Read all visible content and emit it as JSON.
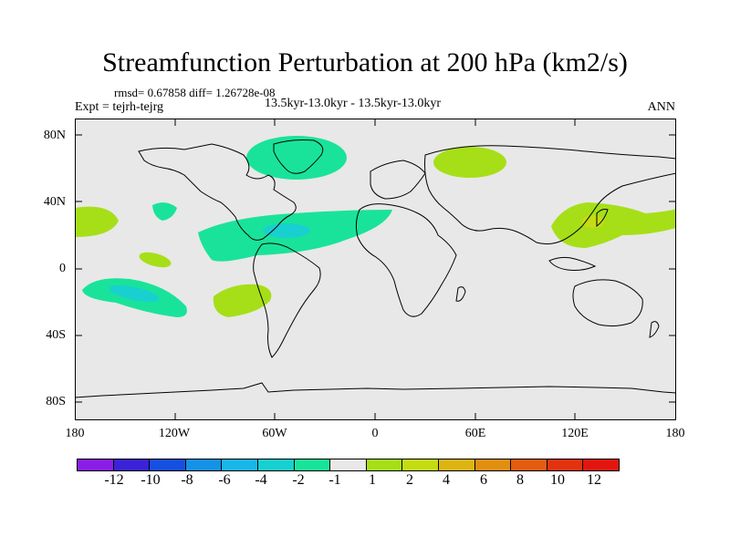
{
  "figure": {
    "title": "Streamfunction Perturbation at 200 hPa (km2/s)",
    "stats": "rmsd= 0.67858  diff= 1.26728e-08",
    "experiment": "Expt = tejrh-tejrg",
    "period": "13.5kyr-13.0kyr - 13.5kyr-13.0kyr",
    "season": "ANN"
  },
  "axes": {
    "y_ticks": [
      "80N",
      "40N",
      "0",
      "40S",
      "80S"
    ],
    "x_ticks": [
      "180",
      "120W",
      "60W",
      "0",
      "60E",
      "120E",
      "180"
    ]
  },
  "colorbar": {
    "colors": [
      "#8a1ee6",
      "#3c22d6",
      "#1550e0",
      "#1591e6",
      "#18b7e8",
      "#18d0cf",
      "#19e39a",
      "#e8e8e8",
      "#a6df18",
      "#c5dc14",
      "#dcb414",
      "#e08f12",
      "#e25d10",
      "#e2330f",
      "#e2160e"
    ],
    "labels": [
      "-12",
      "-10",
      "-8",
      "-6",
      "-4",
      "-2",
      "-1",
      "1",
      "2",
      "4",
      "6",
      "8",
      "10",
      "12"
    ]
  },
  "anomalies": [
    {
      "name": "greenland-negative",
      "level": "-1"
    },
    {
      "name": "siberia-positive",
      "level": "2"
    },
    {
      "name": "pacific-east-positive",
      "level": "2"
    },
    {
      "name": "north-atlantic-negative",
      "level": "-1"
    },
    {
      "name": "caribbean-core-negative",
      "level": "-2"
    },
    {
      "name": "central-pacific-negative",
      "level": "-1"
    },
    {
      "name": "tropical-pacific-small-positive",
      "level": "2"
    },
    {
      "name": "south-pacific-negative",
      "level": "-1"
    },
    {
      "name": "south-pacific-core-negative",
      "level": "-2"
    },
    {
      "name": "south-america-positive",
      "level": "2"
    },
    {
      "name": "west-pacific-positive",
      "level": "2"
    },
    {
      "name": "japan-core-positive",
      "level": "4"
    }
  ]
}
